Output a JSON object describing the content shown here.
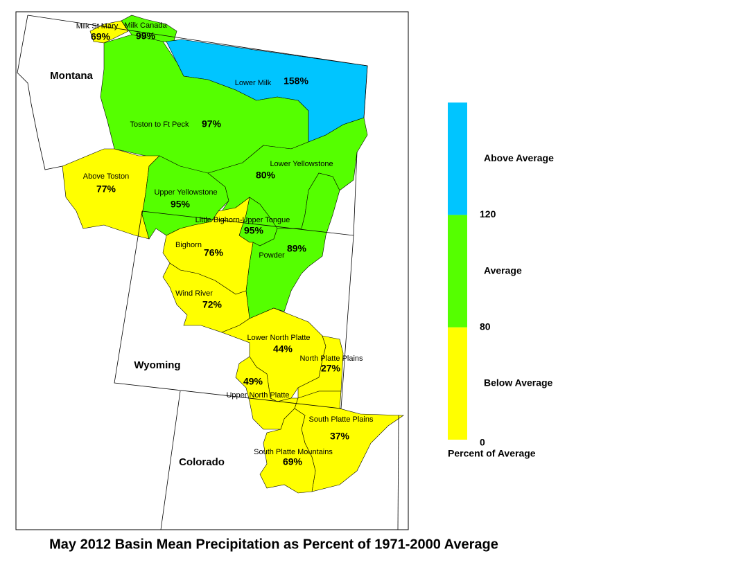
{
  "map": {
    "title": "May 2012 Basin Mean Precipitation as Percent of 1971-2000 Average",
    "states": [
      "Montana",
      "Wyoming",
      "Colorado"
    ],
    "basins": [
      {
        "name": "Milk St Mary",
        "value": 69,
        "value_label": "69%"
      },
      {
        "name": "Milk Canada",
        "value": 99,
        "value_label": "99%"
      },
      {
        "name": "Lower Milk",
        "value": 158,
        "value_label": "158%"
      },
      {
        "name": "Toston to Ft Peck",
        "value": 97,
        "value_label": "97%"
      },
      {
        "name": "Above Toston",
        "value": 77,
        "value_label": "77%"
      },
      {
        "name": "Upper Yellowstone",
        "value": 95,
        "value_label": "95%"
      },
      {
        "name": "Lower Yellowstone",
        "value": 80,
        "value_label": "80%"
      },
      {
        "name": "Little Bighorn-Upper Tongue",
        "value": 95,
        "value_label": "95%"
      },
      {
        "name": "Powder",
        "value": 89,
        "value_label": "89%"
      },
      {
        "name": "Bighorn",
        "value": 76,
        "value_label": "76%"
      },
      {
        "name": "Wind River",
        "value": 72,
        "value_label": "72%"
      },
      {
        "name": "Lower North Platte",
        "value": 44,
        "value_label": "44%"
      },
      {
        "name": "North Platte Plains",
        "value": 27,
        "value_label": "27%"
      },
      {
        "name": "Upper North Platte",
        "value": 49,
        "value_label": "49%"
      },
      {
        "name": "South Platte Plains",
        "value": 37,
        "value_label": "37%"
      },
      {
        "name": "South Platte Mountains",
        "value": 69,
        "value_label": "69%"
      }
    ],
    "legend": {
      "title": "Percent of Average",
      "breaks": [
        0,
        80,
        120
      ],
      "bands": [
        {
          "label": "Below Average",
          "color": "#ffff00"
        },
        {
          "label": "Average",
          "color": "#55ff00"
        },
        {
          "label": "Above Average",
          "color": "#00c5ff"
        }
      ]
    }
  }
}
